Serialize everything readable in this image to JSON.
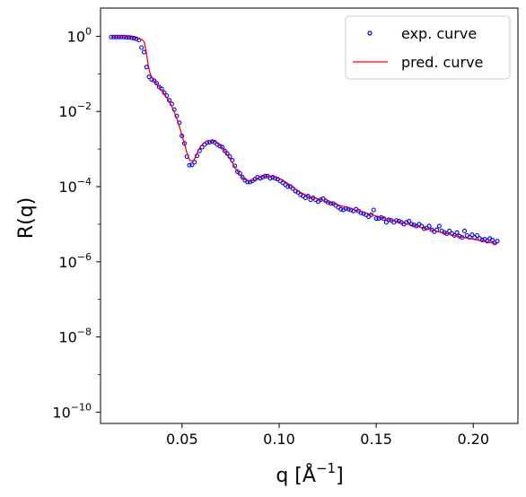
{
  "chart_data": {
    "type": "scatter",
    "title": "",
    "xlabel": "q [Å",
    "xlabel_sup": "−1",
    "xlabel_close": "]",
    "ylabel": "R(q)",
    "xlim": [
      0.008,
      0.223
    ],
    "ylim_log10": [
      -10.3,
      0.75
    ],
    "yscale": "log",
    "grid": false,
    "legend_position": "top-right",
    "x_ticks": [
      {
        "value": 0.05,
        "label": "0.05"
      },
      {
        "value": 0.1,
        "label": "0.10"
      },
      {
        "value": 0.15,
        "label": "0.15"
      },
      {
        "value": 0.2,
        "label": "0.20"
      }
    ],
    "y_ticks": [
      {
        "value": 0,
        "base": "10",
        "exp": "0"
      },
      {
        "value": -2,
        "base": "10",
        "exp": "−2"
      },
      {
        "value": -4,
        "base": "10",
        "exp": "−4"
      },
      {
        "value": -6,
        "base": "10",
        "exp": "−6"
      },
      {
        "value": -8,
        "base": "10",
        "exp": "−8"
      },
      {
        "value": -10,
        "base": "10",
        "exp": "−10"
      }
    ],
    "series": [
      {
        "name": "exp. curve",
        "kind": "scatter",
        "marker_color": "#0000ff",
        "x": [
          0.0135,
          0.0148,
          0.0161,
          0.0174,
          0.0187,
          0.02,
          0.0213,
          0.0226,
          0.0239,
          0.0252,
          0.0265,
          0.0278,
          0.0291,
          0.0304,
          0.0317,
          0.033,
          0.0343,
          0.0356,
          0.0369,
          0.0382,
          0.0395,
          0.0408,
          0.0421,
          0.0434,
          0.0447,
          0.046,
          0.0473,
          0.0486,
          0.0499,
          0.0512,
          0.0525,
          0.0538,
          0.0551,
          0.0564,
          0.0577,
          0.059,
          0.0603,
          0.0616,
          0.0629,
          0.0642,
          0.0655,
          0.0668,
          0.0681,
          0.0694,
          0.0707,
          0.072,
          0.0733,
          0.0746,
          0.0759,
          0.0772,
          0.0785,
          0.0798,
          0.0811,
          0.0824,
          0.0837,
          0.085,
          0.0863,
          0.0876,
          0.0889,
          0.0902,
          0.0915,
          0.0928,
          0.0941,
          0.0954,
          0.0967,
          0.098,
          0.0993,
          0.1006,
          0.1019,
          0.1032,
          0.1045,
          0.1058,
          0.1071,
          0.1084,
          0.1097,
          0.111,
          0.1123,
          0.1136,
          0.1149,
          0.1162,
          0.1175,
          0.1188,
          0.1201,
          0.1214,
          0.1227,
          0.124,
          0.1253,
          0.1266,
          0.1279,
          0.1292,
          0.1305,
          0.1318,
          0.1331,
          0.1344,
          0.1357,
          0.137,
          0.1383,
          0.1396,
          0.1409,
          0.1422,
          0.1435,
          0.1448,
          0.1461,
          0.1474,
          0.1487,
          0.15,
          0.1513,
          0.1526,
          0.1539,
          0.1552,
          0.1565,
          0.1578,
          0.1591,
          0.1604,
          0.1617,
          0.163,
          0.1643,
          0.1656,
          0.1669,
          0.1682,
          0.1695,
          0.1708,
          0.1721,
          0.1734,
          0.1747,
          0.176,
          0.1773,
          0.1786,
          0.1799,
          0.1812,
          0.1825,
          0.1838,
          0.1851,
          0.1864,
          0.1877,
          0.189,
          0.1903,
          0.1916,
          0.1929,
          0.1942,
          0.1955,
          0.1968,
          0.1981,
          0.1994,
          0.2007,
          0.202,
          0.2033,
          0.2046,
          0.2059,
          0.2072,
          0.2085,
          0.2098,
          0.2111,
          0.2124
        ],
        "log10_y": [
          -0.02,
          -0.02,
          -0.02,
          -0.02,
          -0.02,
          -0.02,
          -0.03,
          -0.03,
          -0.04,
          -0.05,
          -0.07,
          -0.1,
          -0.3,
          -0.42,
          -0.82,
          -1.08,
          -1.15,
          -1.18,
          -1.25,
          -1.35,
          -1.4,
          -1.5,
          -1.58,
          -1.7,
          -1.8,
          -1.95,
          -2.12,
          -2.3,
          -2.65,
          -2.85,
          -3.2,
          -3.43,
          -3.42,
          -3.35,
          -3.18,
          -3.05,
          -2.95,
          -2.88,
          -2.83,
          -2.82,
          -2.8,
          -2.82,
          -2.88,
          -2.92,
          -2.95,
          -3.05,
          -3.12,
          -3.2,
          -3.3,
          -3.45,
          -3.6,
          -3.65,
          -3.75,
          -3.83,
          -3.88,
          -3.88,
          -3.85,
          -3.8,
          -3.75,
          -3.78,
          -3.75,
          -3.72,
          -3.72,
          -3.78,
          -3.75,
          -3.78,
          -3.8,
          -3.85,
          -3.9,
          -3.95,
          -4.0,
          -4.0,
          -4.05,
          -4.12,
          -4.15,
          -4.22,
          -4.25,
          -4.3,
          -4.25,
          -4.35,
          -4.3,
          -4.35,
          -4.4,
          -4.35,
          -4.32,
          -4.38,
          -4.42,
          -4.45,
          -4.45,
          -4.5,
          -4.55,
          -4.6,
          -4.62,
          -4.58,
          -4.6,
          -4.62,
          -4.65,
          -4.6,
          -4.65,
          -4.7,
          -4.72,
          -4.75,
          -4.8,
          -4.75,
          -4.62,
          -4.85,
          -4.85,
          -4.82,
          -4.85,
          -4.95,
          -4.88,
          -4.9,
          -4.95,
          -4.9,
          -4.92,
          -4.95,
          -5.0,
          -4.95,
          -4.92,
          -5.0,
          -5.02,
          -5.05,
          -5.0,
          -5.05,
          -5.12,
          -5.1,
          -5.05,
          -5.15,
          -5.2,
          -5.15,
          -5.05,
          -5.18,
          -5.22,
          -5.25,
          -5.18,
          -5.25,
          -5.3,
          -5.22,
          -5.32,
          -5.35,
          -5.18,
          -5.3,
          -5.35,
          -5.28,
          -5.35,
          -5.3,
          -5.38,
          -5.42,
          -5.4,
          -5.45,
          -5.38,
          -5.42,
          -5.5,
          -5.45,
          -5.42,
          -5.5,
          -5.55,
          -5.55
        ]
      },
      {
        "name": "pred. curve",
        "kind": "line",
        "line_color": "#ff0000",
        "x": [
          0.0135,
          0.015,
          0.017,
          0.019,
          0.021,
          0.023,
          0.025,
          0.027,
          0.0285,
          0.0295,
          0.0305,
          0.0315,
          0.0325,
          0.0335,
          0.0345,
          0.036,
          0.0375,
          0.039,
          0.0405,
          0.042,
          0.0435,
          0.045,
          0.0465,
          0.048,
          0.0495,
          0.051,
          0.0525,
          0.054,
          0.055,
          0.056,
          0.057,
          0.058,
          0.059,
          0.06,
          0.0615,
          0.063,
          0.0645,
          0.066,
          0.0675,
          0.069,
          0.0705,
          0.072,
          0.074,
          0.076,
          0.078,
          0.08,
          0.082,
          0.084,
          0.086,
          0.088,
          0.09,
          0.092,
          0.094,
          0.096,
          0.098,
          0.1,
          0.102,
          0.104,
          0.106,
          0.108,
          0.11,
          0.112,
          0.114,
          0.116,
          0.118,
          0.12,
          0.122,
          0.124,
          0.126,
          0.128,
          0.13,
          0.132,
          0.134,
          0.136,
          0.138,
          0.14,
          0.142,
          0.144,
          0.146,
          0.148,
          0.15,
          0.152,
          0.154,
          0.156,
          0.158,
          0.16,
          0.162,
          0.164,
          0.166,
          0.168,
          0.17,
          0.172,
          0.174,
          0.176,
          0.178,
          0.18,
          0.182,
          0.184,
          0.186,
          0.188,
          0.19,
          0.192,
          0.194,
          0.196,
          0.198,
          0.2,
          0.202,
          0.204,
          0.206,
          0.208,
          0.21,
          0.212
        ],
        "log10_y": [
          -0.02,
          -0.02,
          -0.02,
          -0.02,
          -0.02,
          -0.02,
          -0.03,
          -0.05,
          -0.07,
          -0.1,
          -0.15,
          -0.4,
          -0.75,
          -0.98,
          -1.1,
          -1.2,
          -1.3,
          -1.4,
          -1.5,
          -1.62,
          -1.75,
          -1.9,
          -2.08,
          -2.3,
          -2.55,
          -2.82,
          -3.1,
          -3.3,
          -3.32,
          -3.3,
          -3.2,
          -3.08,
          -2.97,
          -2.9,
          -2.83,
          -2.78,
          -2.77,
          -2.78,
          -2.82,
          -2.88,
          -2.95,
          -3.05,
          -3.2,
          -3.38,
          -3.55,
          -3.7,
          -3.8,
          -3.85,
          -3.85,
          -3.8,
          -3.75,
          -3.72,
          -3.72,
          -3.72,
          -3.74,
          -3.78,
          -3.83,
          -3.9,
          -3.97,
          -4.05,
          -4.12,
          -4.18,
          -4.23,
          -4.27,
          -4.3,
          -4.33,
          -4.36,
          -4.39,
          -4.42,
          -4.45,
          -4.48,
          -4.51,
          -4.54,
          -4.57,
          -4.6,
          -4.63,
          -4.66,
          -4.69,
          -4.72,
          -4.75,
          -4.78,
          -4.81,
          -4.84,
          -4.87,
          -4.9,
          -4.92,
          -4.94,
          -4.97,
          -5.0,
          -5.02,
          -5.04,
          -5.07,
          -5.1,
          -5.12,
          -5.14,
          -5.17,
          -5.2,
          -5.22,
          -5.24,
          -5.27,
          -5.3,
          -5.32,
          -5.34,
          -5.36,
          -5.38,
          -5.4,
          -5.42,
          -5.44,
          -5.46,
          -5.48,
          -5.5,
          -5.52
        ]
      }
    ]
  }
}
